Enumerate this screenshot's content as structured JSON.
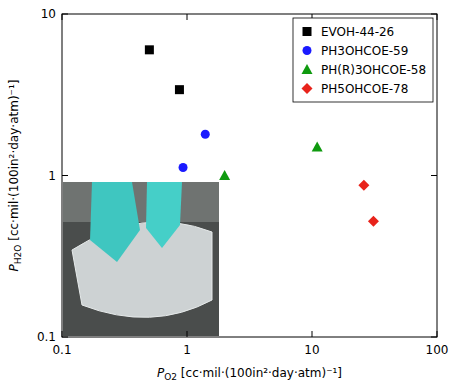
{
  "chart_data": {
    "type": "scatter",
    "log": true,
    "grid": false,
    "legend": "upper right",
    "xlabel": {
      "symbol": "P",
      "subscript": "O2",
      "unit": " [cc·mil·(100in²·day·atm)⁻¹]"
    },
    "ylabel": {
      "symbol": "P",
      "subscript": "H2O",
      "unit": " [cc·mil·(100in²·day·atm)⁻¹]"
    },
    "xlim": [
      0.1,
      100
    ],
    "ylim": [
      0.1,
      10
    ],
    "xticks": [
      0.1,
      1,
      10,
      100
    ],
    "yticks": [
      0.1,
      1,
      10
    ],
    "series": [
      {
        "name": "EVOH-44-26",
        "color": "#000000",
        "marker": "square",
        "x": [
          0.5,
          0.87
        ],
        "values": [
          6.0,
          3.4
        ]
      },
      {
        "name": "PH3OHCOE-59",
        "color": "#1a1aff",
        "marker": "circle",
        "x": [
          1.4,
          0.93
        ],
        "values": [
          1.8,
          1.12
        ]
      },
      {
        "name": "PH(R)3OHCOE-58",
        "color": "#0f9a0f",
        "marker": "triangle",
        "x": [
          2.0,
          11
        ],
        "values": [
          1.0,
          1.5
        ]
      },
      {
        "name": "PH5OHCOE-78",
        "color": "#e8231b",
        "marker": "diamond",
        "x": [
          26,
          31
        ],
        "values": [
          0.87,
          0.52
        ]
      }
    ]
  }
}
